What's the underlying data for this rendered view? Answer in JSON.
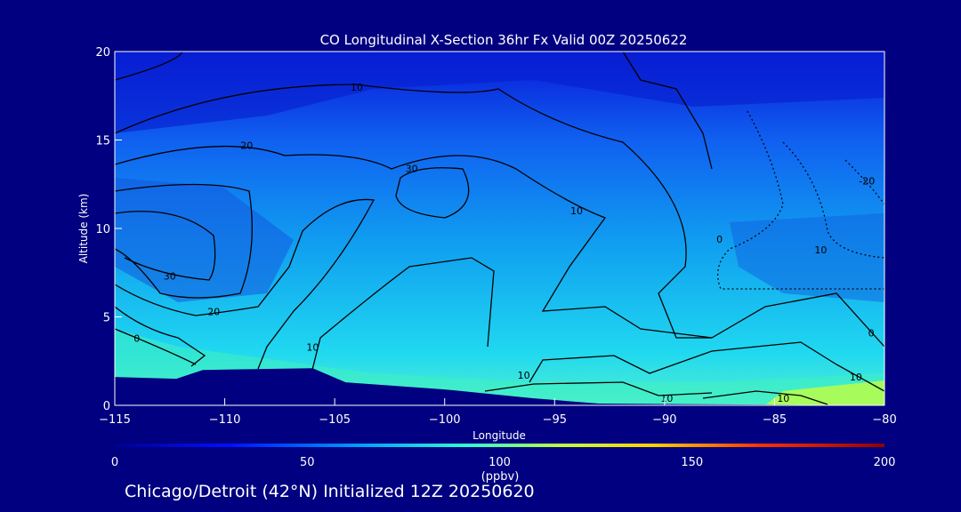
{
  "chart_data": {
    "type": "heatmap",
    "title": "CO Longitudinal X-Section 36hr  Fx Valid 00Z 20250622",
    "xlabel": "Longitude",
    "ylabel": "Altitude (km)",
    "xlim": [
      -115,
      -80
    ],
    "ylim": [
      0,
      20
    ],
    "x_ticks": [
      "-115",
      "-110",
      "-105",
      "-100",
      "-95",
      "-90",
      "-85",
      "-80"
    ],
    "x_tick_values": [
      -115,
      -110,
      -105,
      -100,
      -95,
      -90,
      -85,
      -80
    ],
    "y_ticks": [
      "0",
      "5",
      "10",
      "15",
      "20"
    ],
    "y_tick_values": [
      0,
      5,
      10,
      15,
      20
    ],
    "colorbar": {
      "label": "(ppbv)",
      "range": [
        0,
        200
      ],
      "ticks": [
        "0",
        "50",
        "100",
        "150",
        "200"
      ],
      "tick_values": [
        0,
        50,
        100,
        150,
        200
      ]
    },
    "contour_labels": [
      {
        "text": "10",
        "lon": -104,
        "alt": 17.8
      },
      {
        "text": "20",
        "lon": -109,
        "alt": 14.5
      },
      {
        "text": "30",
        "lon": -112.5,
        "alt": 7.1
      },
      {
        "text": "20",
        "lon": -110.5,
        "alt": 5.1
      },
      {
        "text": "0",
        "lon": -114,
        "alt": 3.6
      },
      {
        "text": "10",
        "lon": -106,
        "alt": 3.1
      },
      {
        "text": "30",
        "lon": -101.5,
        "alt": 13.2
      },
      {
        "text": "10",
        "lon": -94,
        "alt": 10.8
      },
      {
        "text": "0",
        "lon": -87.5,
        "alt": 9.2
      },
      {
        "text": "-20",
        "lon": -80.8,
        "alt": 12.5
      },
      {
        "text": "10",
        "lon": -82.9,
        "alt": 8.6
      },
      {
        "text": "0",
        "lon": -80.6,
        "alt": 3.9
      },
      {
        "text": "10",
        "lon": -81.3,
        "alt": 1.4
      },
      {
        "text": "10",
        "lon": -96.4,
        "alt": 1.5
      },
      {
        "text": "10",
        "lon": -89.9,
        "alt": 0.2
      },
      {
        "text": "10",
        "lon": -84.6,
        "alt": 0.2
      }
    ],
    "terrain_profile": [
      {
        "lon": -115,
        "alt": 1.6
      },
      {
        "lon": -112.2,
        "alt": 1.5
      },
      {
        "lon": -111,
        "alt": 2.0
      },
      {
        "lon": -106,
        "alt": 2.1
      },
      {
        "lon": -104.5,
        "alt": 1.3
      },
      {
        "lon": -100,
        "alt": 0.9
      },
      {
        "lon": -96,
        "alt": 0.4
      },
      {
        "lon": -93,
        "alt": 0.1
      },
      {
        "lon": -80,
        "alt": 0.0
      }
    ]
  },
  "footer": "Chicago/Detroit (42°N) Initialized 12Z 20250620"
}
